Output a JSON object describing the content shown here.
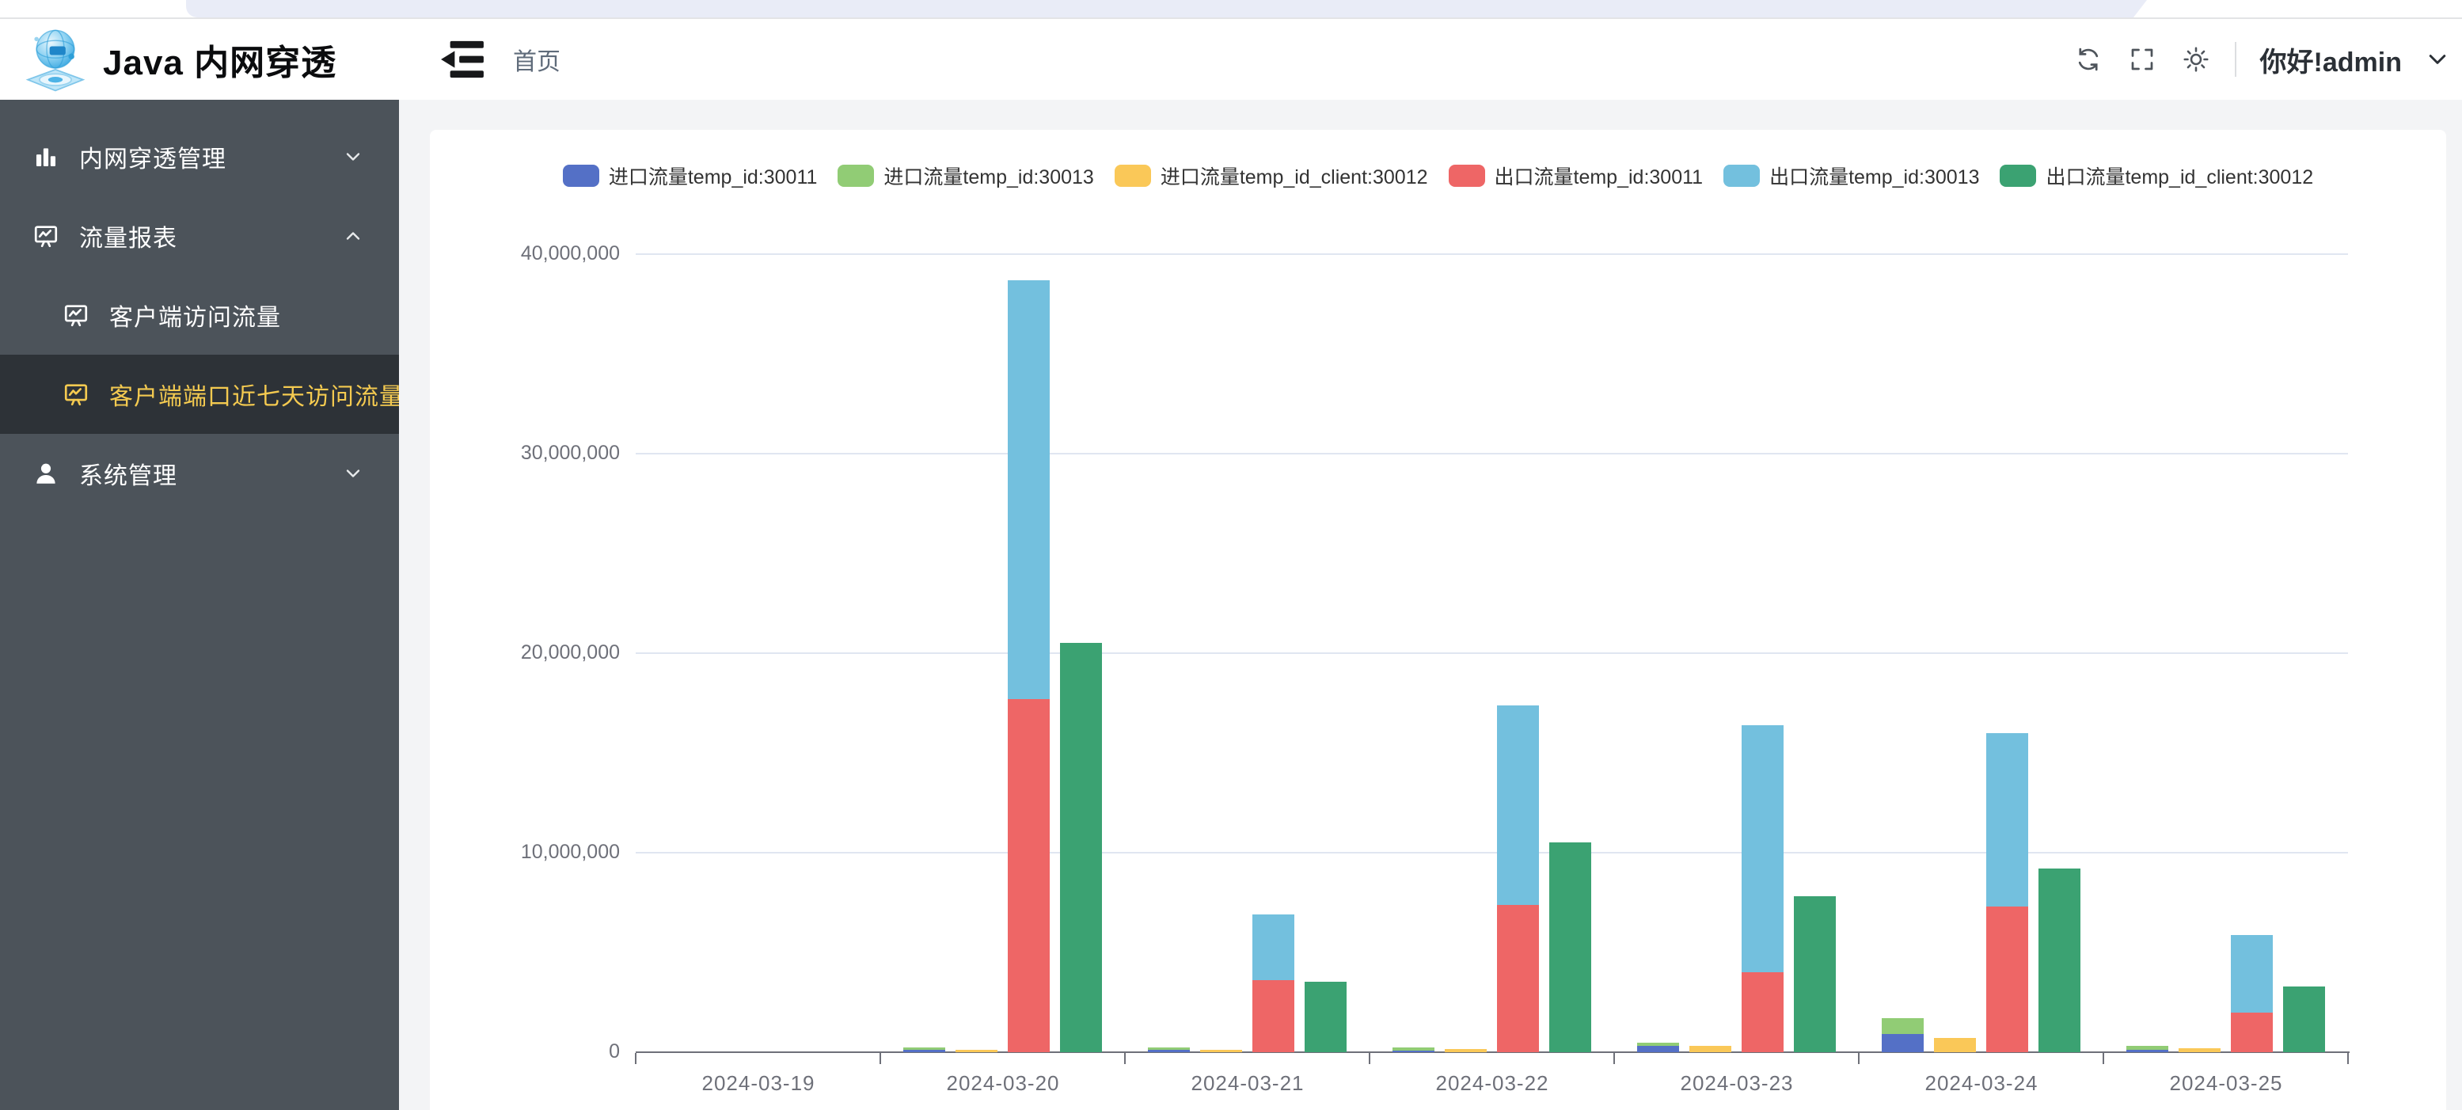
{
  "app": {
    "title": "Java 内网穿透"
  },
  "header": {
    "breadcrumb": "首页",
    "greeting": "你好!admin",
    "icons": [
      "refresh-icon",
      "fullscreen-icon",
      "theme-sun-icon",
      "user-dropdown-chevron-icon"
    ]
  },
  "sidebar": {
    "items": [
      {
        "label": "内网穿透管理",
        "icon": "bar-chart-icon",
        "chevron": "down",
        "type": "parent",
        "active": false
      },
      {
        "label": "流量报表",
        "icon": "chart-board-icon",
        "chevron": "up",
        "type": "parent",
        "active": false
      },
      {
        "label": "客户端访问流量",
        "icon": "chart-board-icon",
        "chevron": "",
        "type": "child",
        "active": false
      },
      {
        "label": "客户端端口近七天访问流量",
        "icon": "chart-board-icon",
        "chevron": "",
        "type": "child",
        "active": true
      },
      {
        "label": "系统管理",
        "icon": "user-icon",
        "chevron": "down",
        "type": "parent",
        "active": false
      }
    ]
  },
  "colors": {
    "sidebar_bg": "#4c535a",
    "sidebar_active_bg": "#2d3237",
    "sidebar_active_text": "#f4ca50",
    "content_bg": "#f3f4f6",
    "grid_line": "#e0e6f1",
    "axis_line": "#6e7079",
    "axis_text": "#6e7079"
  },
  "chart_data": {
    "type": "bar",
    "title": "",
    "grid": true,
    "legend_position": "top",
    "categories": [
      "2024-03-19",
      "2024-03-20",
      "2024-03-21",
      "2024-03-22",
      "2024-03-23",
      "2024-03-24",
      "2024-03-25"
    ],
    "y_ticks": [
      0,
      10000000,
      20000000,
      30000000,
      40000000
    ],
    "ylim": [
      0,
      40000000
    ],
    "series": [
      {
        "name": "进口流量temp_id:30011",
        "color": "#5470c6",
        "stack": "in",
        "values": [
          0,
          120000,
          130000,
          50000,
          300000,
          900000,
          100000
        ]
      },
      {
        "name": "进口流量temp_id:30013",
        "color": "#91cc75",
        "stack": "in",
        "values": [
          0,
          120000,
          100000,
          170000,
          160000,
          800000,
          200000
        ]
      },
      {
        "name": "进口流量temp_id_client:30012",
        "color": "#fac858",
        "stack": "in_client",
        "values": [
          0,
          110000,
          120000,
          160000,
          330000,
          700000,
          200000
        ]
      },
      {
        "name": "出口流量temp_id:30011",
        "color": "#ee6666",
        "stack": "out",
        "values": [
          0,
          17700000,
          3600000,
          7400000,
          4000000,
          7300000,
          2000000
        ]
      },
      {
        "name": "出口流量temp_id:30013",
        "color": "#73c0de",
        "stack": "out",
        "values": [
          0,
          21000000,
          3300000,
          10000000,
          12400000,
          8700000,
          3900000
        ]
      },
      {
        "name": "出口流量temp_id_client:30012",
        "color": "#3ba272",
        "stack": "out_client",
        "values": [
          0,
          20500000,
          3550000,
          10500000,
          7800000,
          9200000,
          3300000
        ]
      }
    ]
  }
}
